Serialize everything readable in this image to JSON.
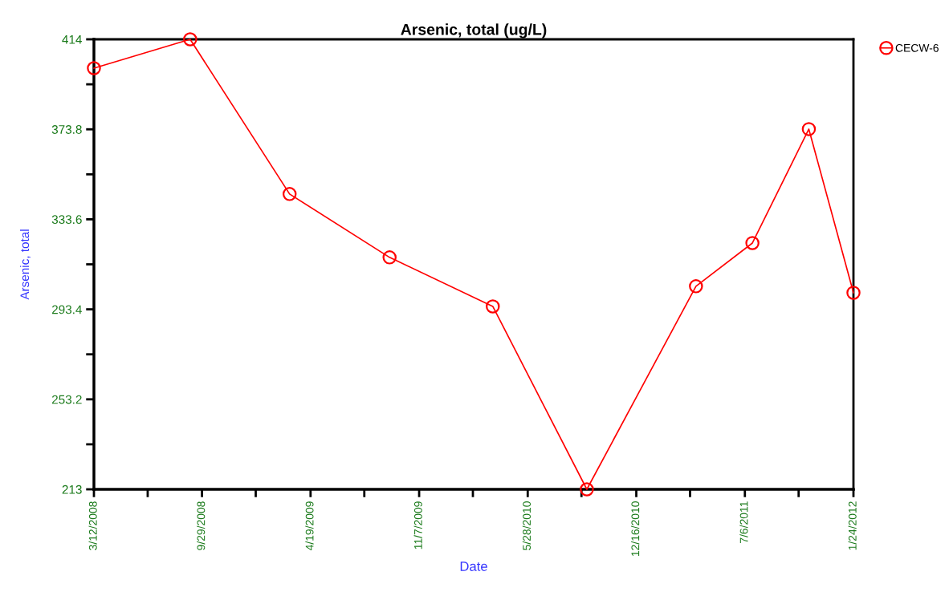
{
  "chart_data": {
    "type": "line",
    "title": "Arsenic, total (ug/L)",
    "xlabel": "Date",
    "ylabel": "Arsenic, total",
    "x": [
      "2008-03-12",
      "2008-09-07",
      "2009-03-11",
      "2009-09-13",
      "2010-03-24",
      "2010-09-15",
      "2011-04-06",
      "2011-07-20",
      "2011-11-02",
      "2012-01-24"
    ],
    "series": [
      {
        "name": "CECW-6",
        "color": "#ff0000",
        "values": [
          401.1,
          414,
          344.9,
          316.6,
          294.7,
          213,
          303.7,
          323.0,
          373.9,
          300.8
        ]
      }
    ],
    "xlim": [
      "2008-03-12",
      "2012-01-24"
    ],
    "xticks": [
      {
        "value": "2008-03-12",
        "label": "3/12/2008"
      },
      {
        "value": "2008-06-20",
        "label": null
      },
      {
        "value": "2008-09-29",
        "label": "9/29/2008"
      },
      {
        "value": "2009-01-07",
        "label": null
      },
      {
        "value": "2009-04-19",
        "label": "4/19/2009"
      },
      {
        "value": "2009-07-28",
        "label": null
      },
      {
        "value": "2009-11-07",
        "label": "11/7/2009"
      },
      {
        "value": "2010-02-15",
        "label": null
      },
      {
        "value": "2010-05-28",
        "label": "5/28/2010"
      },
      {
        "value": "2010-09-05",
        "label": null
      },
      {
        "value": "2010-12-16",
        "label": "12/16/2010"
      },
      {
        "value": "2011-03-26",
        "label": null
      },
      {
        "value": "2011-07-06",
        "label": "7/6/2011"
      },
      {
        "value": "2011-10-14",
        "label": null
      },
      {
        "value": "2012-01-24",
        "label": "1/24/2012"
      }
    ],
    "ylim": [
      213,
      414
    ],
    "yticks": [
      213,
      {
        "value": 233.1,
        "label": null
      },
      253.2,
      {
        "value": 273.3,
        "label": null
      },
      293.4,
      {
        "value": 313.5,
        "label": null
      },
      333.6,
      {
        "value": 353.7,
        "label": null
      },
      373.8,
      {
        "value": 393.9,
        "label": null
      },
      414
    ],
    "grid": false,
    "legend": "top right",
    "marker": "circle",
    "line_style": "solid"
  }
}
